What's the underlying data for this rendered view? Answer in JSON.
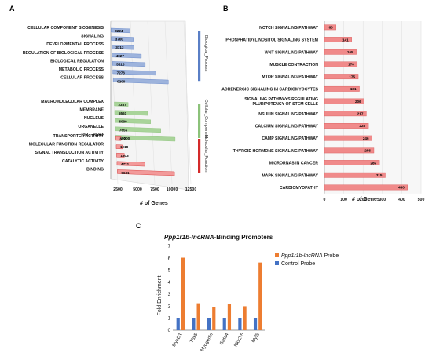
{
  "panels": {
    "a": "A",
    "b": "B",
    "c": "C"
  },
  "chart_data": [
    {
      "panel": "A",
      "type": "bar",
      "orientation": "horizontal",
      "xlabel": "# of Genes",
      "xticks": [
        "2500",
        "5000",
        "7500",
        "10000",
        "12500"
      ],
      "xlim": [
        0,
        12500
      ],
      "groups": [
        {
          "name": "Biological_Process",
          "color": "#5a7fc6",
          "bar_color": "#9db3dc",
          "categories": [
            "CELLULAR COMPONENT BIOGENESIS",
            "SIGNALING",
            "DEVELOPMENTAL PROCESS",
            "REGULATION OF BIOLOGICAL PROCESS",
            "BIOLOGICAL REGULATION",
            "METABOLIC PROCESS",
            "CELLULAR PROCESS"
          ],
          "values": [
            3224,
            3700,
            3713,
            4927,
            5518,
            7273,
            9290
          ],
          "labels": [
            "3224",
            "3700",
            "3713",
            "4927",
            "5518",
            "7273",
            "9290"
          ]
        },
        {
          "name": "Cellular_Component",
          "color": "#8cc27a",
          "bar_color": "#a9d49a",
          "categories": [
            "MACROMOLECULAR COMPLEX",
            "MEMBRANE",
            "NUCLEUS",
            "ORGANELLE",
            "CELL PART"
          ],
          "values": [
            2337,
            5561,
            6000,
            7655,
            10000
          ],
          "labels": [
            "2337",
            "5561",
            "6000",
            "7655",
            "10000"
          ]
        },
        {
          "name": "Molecular_Function",
          "color": "#d42a2a",
          "bar_color": "#f29a9a",
          "categories": [
            "TRANSPORTER ACTIVITY",
            "MOLECULAR FUNCTION REGULATOR",
            "SIGNAL TRANSDUCTION ACTIVITY",
            "CATALYTIC ACTIVITY",
            "BINDING"
          ],
          "values": [
            872,
            1018,
            1303,
            4721,
            9631
          ],
          "labels": [
            "872",
            "1018",
            "1303",
            "4721",
            "9631"
          ]
        }
      ]
    },
    {
      "panel": "B",
      "type": "bar",
      "orientation": "horizontal",
      "xlabel": "# of Genes",
      "xticks": [
        "0",
        "100",
        "200",
        "300",
        "400",
        "500"
      ],
      "xlim": [
        0,
        500
      ],
      "categories": [
        "NOTCH SIGNALING PATHWAY",
        "PHOSPHATIDYLINOSITOL SIGNALING SYSTEM",
        "WNT SIGNALING PATHWAY",
        "MUSCLE CONTRACTION",
        "MTOR SIGNALING PATHWAY",
        "ADRENERGIC SIGNALING IN CARDIOMYOCYTES",
        "SIGNALING PATHWAYS REGULATING PLURIPOTENCY OF STEM CELLS",
        "INSULIN SIGNALING PATHWAY",
        "CALCIUM SIGNALING PATHWAY",
        "CAMP SIGNALING PATHWAY",
        "THYROID HORMONE SIGNALING PATHWAY",
        "MICRORNAS IN CANCER",
        "MAPK SIGNALING PATHWAY",
        "CARDIOMYOPATHY"
      ],
      "category_lines": [
        [
          "NOTCH SIGNALING PATHWAY"
        ],
        [
          "PHOSPHATIDYLINOSITOL SIGNALING SYSTEM"
        ],
        [
          "WNT SIGNALING PATHWAY"
        ],
        [
          "MUSCLE CONTRACTION"
        ],
        [
          "MTOR SIGNALING PATHWAY"
        ],
        [
          "ADRENERGIC SIGNALING IN CARDIOMYOCYTES"
        ],
        [
          "SIGNALING PATHWAYS REGULATING",
          "PLURIPOTENCY OF STEM CELLS"
        ],
        [
          "INSULIN SIGNALING PATHWAY"
        ],
        [
          "CALCIUM SIGNALING PATHWAY"
        ],
        [
          "CAMP SIGNALING PATHWAY"
        ],
        [
          "THYROID HORMONE SIGNALING PATHWAY"
        ],
        [
          "MICRORNAS IN CANCER"
        ],
        [
          "MAPK SIGNALING PATHWAY"
        ],
        [
          "CARDIOMYOPATHY"
        ]
      ],
      "values": [
        60,
        141,
        165,
        170,
        175,
        181,
        206,
        217,
        228,
        246,
        256,
        285,
        315,
        430
      ],
      "labels": [
        "60",
        "141",
        "165",
        "170",
        "175",
        "181",
        "206",
        "217",
        "228",
        "246",
        "256",
        "285",
        "315",
        "430"
      ],
      "bar_color": "#f08a8a"
    },
    {
      "panel": "C",
      "type": "bar",
      "title_italic": "Ppp1r1b-lncRNA",
      "title_rest": "-Binding  Promoters",
      "ylabel": "Fold Enrichment",
      "ylim": [
        0,
        7
      ],
      "yticks": [
        "0",
        "1",
        "2",
        "3",
        "4",
        "5",
        "6",
        "7"
      ],
      "categories": [
        "MyoD1",
        "Tbx5",
        "Myogenin",
        "Gata4",
        "Nkx2-5",
        "Myf5"
      ],
      "series": [
        {
          "name": "Control Probe",
          "values": [
            1.0,
            1.0,
            1.0,
            1.0,
            1.0,
            1.0
          ],
          "color": "#4472c4"
        },
        {
          "name_italic": "Ppp1r1b-lncRNA",
          "name_rest": " Probe",
          "values": [
            6.05,
            2.25,
            1.95,
            2.2,
            2.0,
            5.65
          ],
          "color": "#ed7d31"
        }
      ],
      "legend_position": "right"
    }
  ]
}
